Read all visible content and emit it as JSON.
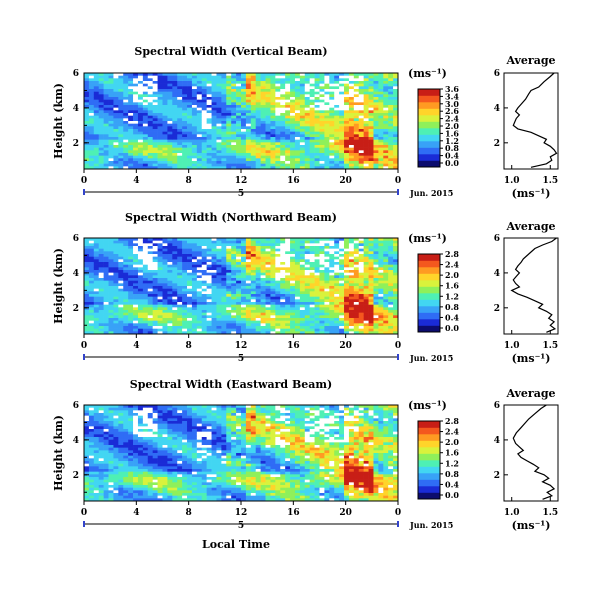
{
  "figure": {
    "date_label": "Jun. 2015",
    "xlabel": "Local Time",
    "day_label": "5"
  },
  "colorbar": {
    "unit": "(ms⁻¹)",
    "colors": [
      "#0c0c6e",
      "#1a2bd6",
      "#2f6cf5",
      "#38a2f7",
      "#42d6f2",
      "#4ef0b4",
      "#8ff05a",
      "#d9f23c",
      "#ffd42a",
      "#ff9a22",
      "#f4581e",
      "#c81e16"
    ]
  },
  "chart_data": [
    {
      "type": "heatmap",
      "id": "vertical",
      "title": "Spectral Width (Vertical Beam)",
      "ylabel": "Height (km)",
      "x_ticks": [
        "0",
        "4",
        "8",
        "12",
        "16",
        "20",
        "0"
      ],
      "y_ticks": [
        "6",
        "4",
        "2"
      ],
      "xlim": [
        0,
        24
      ],
      "ylim": [
        0.5,
        6
      ],
      "colorbar_ticks": [
        "3.6",
        "3.4",
        "3.0",
        "2.6",
        "2.4",
        "2.0",
        "1.6",
        "1.2",
        "0.8",
        "0.4",
        "0.0"
      ],
      "profile": {
        "title": "Average",
        "xlabel": "(ms⁻¹)",
        "x_ticks": [
          "1.0",
          "1.5"
        ],
        "y_ticks": [
          "6",
          "4",
          "2"
        ],
        "xlim": [
          0.9,
          1.6
        ],
        "ylim": [
          0.5,
          6
        ],
        "points": [
          [
            1.55,
            6.0
          ],
          [
            1.5,
            5.8
          ],
          [
            1.42,
            5.5
          ],
          [
            1.35,
            5.2
          ],
          [
            1.25,
            5.0
          ],
          [
            1.22,
            4.8
          ],
          [
            1.18,
            4.5
          ],
          [
            1.12,
            4.2
          ],
          [
            1.08,
            4.0
          ],
          [
            1.05,
            3.8
          ],
          [
            1.1,
            3.6
          ],
          [
            1.06,
            3.4
          ],
          [
            1.04,
            3.2
          ],
          [
            1.02,
            3.0
          ],
          [
            1.08,
            2.8
          ],
          [
            1.25,
            2.6
          ],
          [
            1.35,
            2.4
          ],
          [
            1.45,
            2.2
          ],
          [
            1.42,
            2.0
          ],
          [
            1.5,
            1.8
          ],
          [
            1.55,
            1.6
          ],
          [
            1.58,
            1.4
          ],
          [
            1.5,
            1.2
          ],
          [
            1.52,
            1.0
          ],
          [
            1.45,
            0.8
          ],
          [
            1.25,
            0.6
          ]
        ]
      }
    },
    {
      "type": "heatmap",
      "id": "northward",
      "title": "Spectral Width (Northward Beam)",
      "ylabel": "Height (km)",
      "x_ticks": [
        "0",
        "4",
        "8",
        "12",
        "16",
        "20",
        "0"
      ],
      "y_ticks": [
        "6",
        "4",
        "2"
      ],
      "xlim": [
        0,
        24
      ],
      "ylim": [
        0.5,
        6
      ],
      "colorbar_ticks": [
        "2.8",
        "2.4",
        "2.0",
        "1.6",
        "1.2",
        "0.8",
        "0.4",
        "0.0"
      ],
      "profile": {
        "title": "Average",
        "xlabel": "(ms⁻¹)",
        "x_ticks": [
          "1.0",
          "1.5"
        ],
        "y_ticks": [
          "6",
          "4",
          "2"
        ],
        "xlim": [
          0.9,
          1.6
        ],
        "ylim": [
          0.5,
          6
        ],
        "points": [
          [
            1.58,
            6.0
          ],
          [
            1.52,
            5.8
          ],
          [
            1.4,
            5.6
          ],
          [
            1.3,
            5.4
          ],
          [
            1.25,
            5.2
          ],
          [
            1.2,
            5.0
          ],
          [
            1.15,
            4.8
          ],
          [
            1.12,
            4.6
          ],
          [
            1.08,
            4.4
          ],
          [
            1.05,
            4.2
          ],
          [
            1.1,
            4.0
          ],
          [
            1.06,
            3.8
          ],
          [
            1.02,
            3.6
          ],
          [
            1.05,
            3.4
          ],
          [
            1.1,
            3.2
          ],
          [
            1.0,
            3.0
          ],
          [
            1.08,
            2.8
          ],
          [
            1.2,
            2.6
          ],
          [
            1.3,
            2.4
          ],
          [
            1.4,
            2.2
          ],
          [
            1.35,
            2.0
          ],
          [
            1.45,
            1.8
          ],
          [
            1.52,
            1.6
          ],
          [
            1.48,
            1.4
          ],
          [
            1.55,
            1.2
          ],
          [
            1.5,
            1.0
          ],
          [
            1.56,
            0.8
          ],
          [
            1.45,
            0.6
          ]
        ]
      }
    },
    {
      "type": "heatmap",
      "id": "eastward",
      "title": "Spectral Width (Eastward Beam)",
      "ylabel": "Height (km)",
      "x_ticks": [
        "0",
        "4",
        "8",
        "12",
        "16",
        "20",
        "0"
      ],
      "y_ticks": [
        "6",
        "4",
        "2"
      ],
      "xlim": [
        0,
        24
      ],
      "ylim": [
        0.5,
        6
      ],
      "colorbar_ticks": [
        "2.8",
        "2.4",
        "2.0",
        "1.6",
        "1.2",
        "0.8",
        "0.4",
        "0.0"
      ],
      "profile": {
        "title": "Average",
        "xlabel": "(ms⁻¹)",
        "x_ticks": [
          "1.0",
          "1.5"
        ],
        "y_ticks": [
          "6",
          "4",
          "2"
        ],
        "xlim": [
          0.9,
          1.6
        ],
        "ylim": [
          0.5,
          6
        ],
        "points": [
          [
            1.45,
            6.0
          ],
          [
            1.38,
            5.8
          ],
          [
            1.3,
            5.5
          ],
          [
            1.22,
            5.2
          ],
          [
            1.18,
            5.0
          ],
          [
            1.12,
            4.7
          ],
          [
            1.06,
            4.4
          ],
          [
            1.02,
            4.1
          ],
          [
            1.05,
            3.8
          ],
          [
            1.1,
            3.6
          ],
          [
            1.15,
            3.4
          ],
          [
            1.08,
            3.2
          ],
          [
            1.12,
            3.0
          ],
          [
            1.2,
            2.8
          ],
          [
            1.28,
            2.6
          ],
          [
            1.35,
            2.4
          ],
          [
            1.3,
            2.2
          ],
          [
            1.42,
            2.0
          ],
          [
            1.48,
            1.8
          ],
          [
            1.4,
            1.6
          ],
          [
            1.5,
            1.4
          ],
          [
            1.55,
            1.2
          ],
          [
            1.46,
            1.0
          ],
          [
            1.52,
            0.8
          ],
          [
            1.4,
            0.6
          ]
        ]
      }
    }
  ]
}
